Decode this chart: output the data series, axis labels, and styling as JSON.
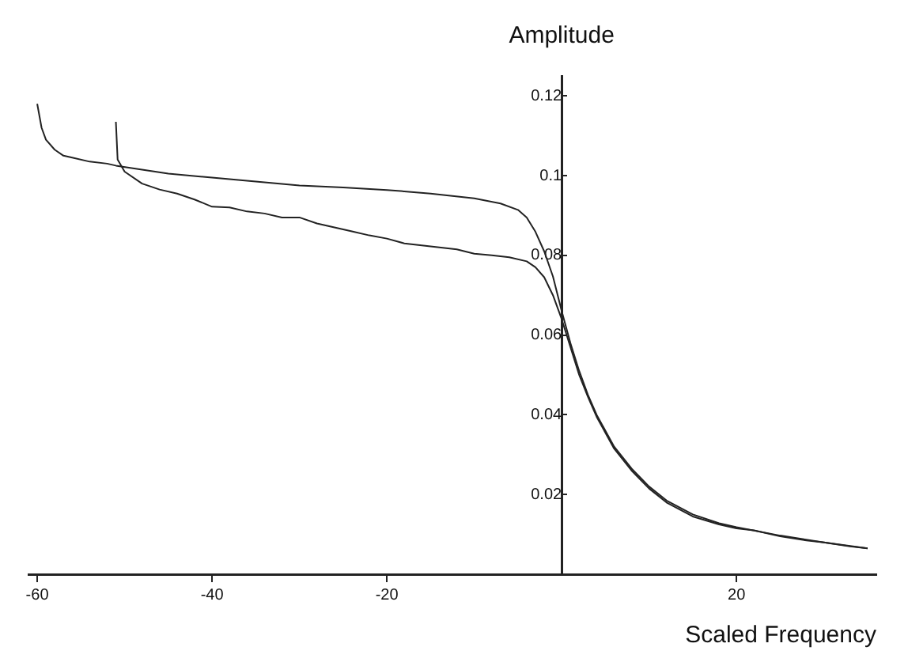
{
  "chart_data": {
    "type": "line",
    "xlabel": "Scaled Frequency",
    "ylabel": "Amplitude",
    "xlim": [
      -61,
      36
    ],
    "ylim": [
      0,
      0.125
    ],
    "xticks": [
      -60,
      -40,
      -20,
      20
    ],
    "yticks": [
      0.02,
      0.04,
      0.06,
      0.08,
      0.1,
      0.12
    ],
    "grid": false,
    "legend": false,
    "marker": "none",
    "line_style": "solid",
    "series": [
      {
        "color": "#222222",
        "x": [
          -60,
          -59.5,
          -59,
          -58,
          -57,
          -56,
          -54,
          -52,
          -51,
          -48,
          -45,
          -40,
          -35,
          -30,
          -25,
          -20,
          -15,
          -10,
          -7,
          -5,
          -4,
          -3,
          -2,
          -1,
          0,
          1,
          2,
          3,
          4,
          6,
          8,
          10,
          12,
          15,
          18,
          20,
          25,
          30,
          35
        ],
        "values": [
          0.118,
          0.112,
          0.109,
          0.1065,
          0.105,
          0.1045,
          0.1035,
          0.103,
          0.1025,
          0.1015,
          0.1005,
          0.0995,
          0.0985,
          0.0975,
          0.097,
          0.0964,
          0.0955,
          0.0943,
          0.093,
          0.0914,
          0.0895,
          0.0859,
          0.081,
          0.0747,
          0.066,
          0.058,
          0.051,
          0.045,
          0.04,
          0.032,
          0.0265,
          0.022,
          0.0185,
          0.015,
          0.0128,
          0.0118,
          0.0097,
          0.008,
          0.0065
        ]
      },
      {
        "color": "#222222",
        "x": [
          -51,
          -50.8,
          -50,
          -48,
          -46,
          -44,
          -42,
          -40,
          -38,
          -36,
          -34,
          -32,
          -30,
          -28,
          -26,
          -24,
          -22,
          -20,
          -18,
          -16,
          -14,
          -12,
          -10,
          -8,
          -6,
          -4,
          -3,
          -2,
          -1,
          0,
          1,
          2,
          3,
          4,
          6,
          8,
          10,
          12,
          15,
          18,
          20,
          22,
          25,
          28,
          30,
          33,
          35
        ],
        "values": [
          0.1135,
          0.104,
          0.101,
          0.098,
          0.0965,
          0.0955,
          0.094,
          0.0922,
          0.092,
          0.091,
          0.0905,
          0.0895,
          0.0895,
          0.088,
          0.087,
          0.086,
          0.085,
          0.0842,
          0.083,
          0.0825,
          0.082,
          0.0815,
          0.0804,
          0.08,
          0.0795,
          0.0785,
          0.077,
          0.0745,
          0.07,
          0.064,
          0.057,
          0.05,
          0.0445,
          0.0395,
          0.0315,
          0.026,
          0.0215,
          0.018,
          0.0145,
          0.0125,
          0.0115,
          0.011,
          0.0095,
          0.0085,
          0.008,
          0.007,
          0.0065
        ]
      }
    ]
  }
}
